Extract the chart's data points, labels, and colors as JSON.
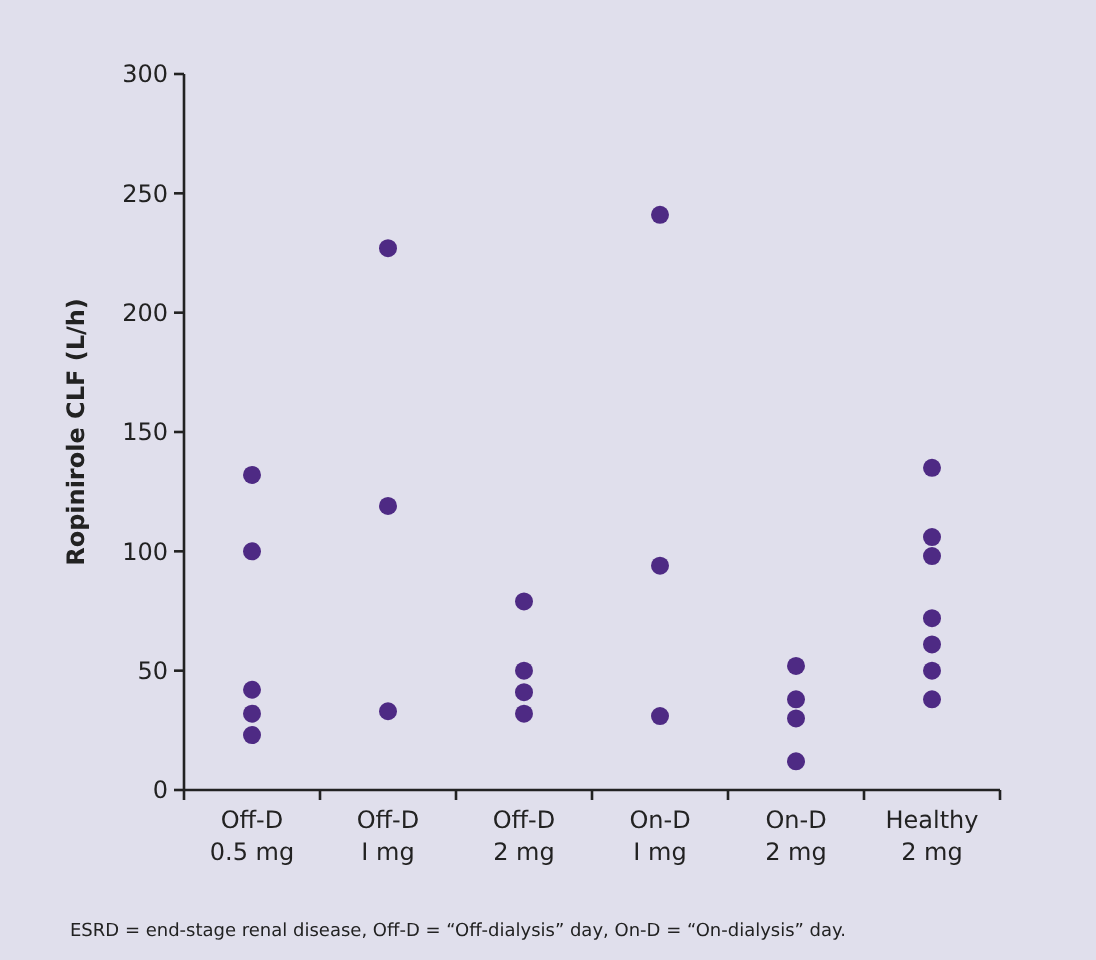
{
  "chart_data": {
    "type": "scatter",
    "ylabel": "Ropinirole CLF (L/h)",
    "categories": [
      "Off-D\n0.5 mg",
      "Off-D\nI mg",
      "Off-D\n2 mg",
      "On-D\nI mg",
      "On-D\n2 mg",
      "Healthy\n2 mg"
    ],
    "series": [
      {
        "color": "#4e2a84",
        "x": [
          "Off-D\n0.5 mg",
          "Off-D\n0.5 mg",
          "Off-D\n0.5 mg",
          "Off-D\n0.5 mg",
          "Off-D\n0.5 mg",
          "Off-D\nI mg",
          "Off-D\nI mg",
          "Off-D\nI mg",
          "Off-D\n2 mg",
          "Off-D\n2 mg",
          "Off-D\n2 mg",
          "Off-D\n2 mg",
          "On-D\nI mg",
          "On-D\nI mg",
          "On-D\nI mg",
          "On-D\n2 mg",
          "On-D\n2 mg",
          "On-D\n2 mg",
          "On-D\n2 mg",
          "Healthy\n2 mg",
          "Healthy\n2 mg",
          "Healthy\n2 mg",
          "Healthy\n2 mg",
          "Healthy\n2 mg",
          "Healthy\n2 mg",
          "Healthy\n2 mg"
        ],
        "values": [
          132,
          100,
          42,
          32,
          23,
          227,
          119,
          33,
          79,
          50,
          41,
          32,
          241,
          94,
          31,
          52,
          38,
          30,
          12,
          135,
          106,
          98,
          72,
          61,
          50,
          38
        ]
      }
    ],
    "ylim": [
      0,
      300
    ],
    "yticks": [
      0,
      50,
      100,
      150,
      200,
      250,
      300
    ],
    "grid": false,
    "marker": "circle",
    "annotations": [
      "ESRD = end-stage renal disease, Off-D = “Off-dialysis” day, On-D = “On-dialysis” day."
    ]
  }
}
